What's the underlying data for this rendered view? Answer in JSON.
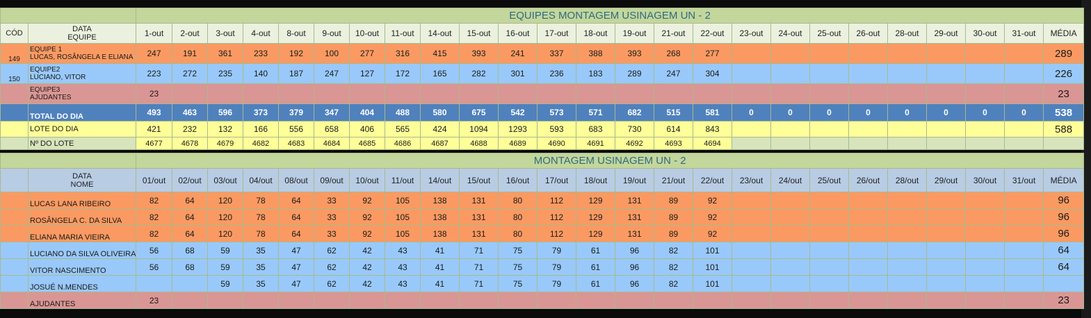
{
  "team_table": {
    "title": "EQUIPES MONTAGEM USINAGEM UN - 2",
    "cod_header": "CÓD",
    "label_header_top": "DATA",
    "label_header_bottom": "EQUIPE",
    "dates": [
      "1-out",
      "2-out",
      "3-out",
      "4-out",
      "8-out",
      "9-out",
      "10-out",
      "11-out",
      "14-out",
      "15-out",
      "16-out",
      "17-out",
      "18-out",
      "19-out",
      "21-out",
      "22-out",
      "23-out",
      "24-out",
      "25-out",
      "26-out",
      "28-out",
      "29-out",
      "30-out",
      "31-out"
    ],
    "avg_header": "MÉDIA",
    "teams": [
      {
        "cod": "149",
        "name": "EQUIPE 1",
        "members": "LUCAS, ROSÂNGELA E ELIANA",
        "color": "#fa9a62",
        "values": [
          "247",
          "191",
          "361",
          "233",
          "192",
          "100",
          "277",
          "316",
          "415",
          "393",
          "241",
          "337",
          "388",
          "393",
          "268",
          "277",
          "",
          "",
          "",
          "",
          "",
          "",
          "",
          ""
        ],
        "avg": "289"
      },
      {
        "cod": "150",
        "name": "EQUIPE2",
        "members": "LUCIANO, VITOR",
        "color": "#99c9fa",
        "values": [
          "223",
          "272",
          "235",
          "140",
          "187",
          "247",
          "127",
          "172",
          "165",
          "282",
          "301",
          "236",
          "183",
          "289",
          "247",
          "304",
          "",
          "",
          "",
          "",
          "",
          "",
          "",
          ""
        ],
        "avg": "226"
      },
      {
        "cod": "",
        "name": "EQUIPE3",
        "members": "AJUDANTES",
        "color": "#da9694",
        "values": [
          "23",
          "",
          "",
          "",
          "",
          "",
          "",
          "",
          "",
          "",
          "",
          "",
          "",
          "",
          "",
          "",
          "",
          "",
          "",
          "",
          "",
          "",
          "",
          ""
        ],
        "avg": "23"
      }
    ],
    "total": {
      "label": "TOTAL DO DIA",
      "values": [
        "493",
        "463",
        "596",
        "373",
        "379",
        "347",
        "404",
        "488",
        "580",
        "675",
        "542",
        "573",
        "571",
        "682",
        "515",
        "581",
        "0",
        "0",
        "0",
        "0",
        "0",
        "0",
        "0",
        "0"
      ],
      "avg": "538"
    },
    "lote_do_dia": {
      "label": "LOTE DO DIA",
      "values": [
        "421",
        "232",
        "132",
        "166",
        "556",
        "658",
        "406",
        "565",
        "424",
        "1094",
        "1293",
        "593",
        "683",
        "730",
        "614",
        "843",
        "",
        "",
        "",
        "",
        "",
        "",
        "",
        ""
      ],
      "avg": "588"
    },
    "numero_lote": {
      "label": "Nº DO LOTE",
      "values": [
        "4677",
        "4678",
        "4679",
        "4682",
        "4683",
        "4684",
        "4685",
        "4686",
        "4687",
        "4688",
        "4689",
        "4690",
        "4691",
        "4692",
        "4693",
        "4694",
        "",
        "",
        "",
        "",
        "",
        "",
        "",
        ""
      ],
      "avg": ""
    }
  },
  "people_table": {
    "title": "MONTAGEM USINAGEM UN - 2",
    "label_header_top": "DATA",
    "label_header_bottom": "NOME",
    "dates": [
      "01/out",
      "02/out",
      "03/out",
      "04/out",
      "08/out",
      "09/out",
      "10/out",
      "11/out",
      "14/out",
      "15/out",
      "16/out",
      "17/out",
      "18/out",
      "19/out",
      "21/out",
      "22/out",
      "23/out",
      "24/out",
      "25/out",
      "26/out",
      "28/out",
      "29/out",
      "30/out",
      "31/out"
    ],
    "avg_header": "MÉDIA",
    "people": [
      {
        "name": "LUCAS LANA RIBEIRO",
        "color": "#fa9a62",
        "values": [
          "82",
          "64",
          "120",
          "78",
          "64",
          "33",
          "92",
          "105",
          "138",
          "131",
          "80",
          "112",
          "129",
          "131",
          "89",
          "92",
          "",
          "",
          "",
          "",
          "",
          "",
          "",
          ""
        ],
        "avg": "96"
      },
      {
        "name": "ROSÂNGELA C. DA SILVA",
        "color": "#fa9a62",
        "values": [
          "82",
          "64",
          "120",
          "78",
          "64",
          "33",
          "92",
          "105",
          "138",
          "131",
          "80",
          "112",
          "129",
          "131",
          "89",
          "92",
          "",
          "",
          "",
          "",
          "",
          "",
          "",
          ""
        ],
        "avg": "96"
      },
      {
        "name": "ELIANA MARIA VIEIRA",
        "color": "#fa9a62",
        "values": [
          "82",
          "64",
          "120",
          "78",
          "64",
          "33",
          "92",
          "105",
          "138",
          "131",
          "80",
          "112",
          "129",
          "131",
          "89",
          "92",
          "",
          "",
          "",
          "",
          "",
          "",
          "",
          ""
        ],
        "avg": "96"
      },
      {
        "name": "LUCIANO DA SILVA OLIVEIRA",
        "color": "#99c9fa",
        "values": [
          "56",
          "68",
          "59",
          "35",
          "47",
          "62",
          "42",
          "43",
          "41",
          "71",
          "75",
          "79",
          "61",
          "96",
          "82",
          "101",
          "",
          "",
          "",
          "",
          "",
          "",
          "",
          ""
        ],
        "avg": "64"
      },
      {
        "name": "VITOR NASCIMENTO",
        "color": "#99c9fa",
        "values": [
          "56",
          "68",
          "59",
          "35",
          "47",
          "62",
          "42",
          "43",
          "41",
          "71",
          "75",
          "79",
          "61",
          "96",
          "82",
          "101",
          "",
          "",
          "",
          "",
          "",
          "",
          "",
          ""
        ],
        "avg": "64"
      },
      {
        "name": "JOSUÉ N.MENDES",
        "color": "#99c9fa",
        "values": [
          "",
          "",
          "59",
          "35",
          "47",
          "62",
          "42",
          "43",
          "41",
          "71",
          "75",
          "79",
          "61",
          "96",
          "82",
          "101",
          "",
          "",
          "",
          "",
          "",
          "",
          "",
          ""
        ],
        "avg": ""
      },
      {
        "name": "AJUDANTES",
        "color": "#da9694",
        "values": [
          "23",
          "",
          "",
          "",
          "",
          "",
          "",
          "",
          "",
          "",
          "",
          "",
          "",
          "",
          "",
          "",
          "",
          "",
          "",
          "",
          "",
          "",
          "",
          ""
        ],
        "avg": "23"
      }
    ]
  }
}
